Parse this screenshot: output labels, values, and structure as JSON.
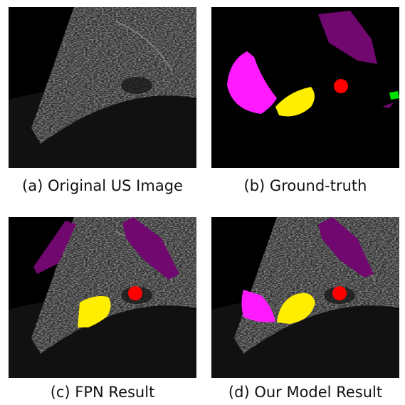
{
  "panels": [
    {
      "caption": "(a) Original US Image"
    },
    {
      "caption": "(b) Ground-truth"
    },
    {
      "caption": "(c) FPN Result"
    },
    {
      "caption": "(d) Our Model Result"
    }
  ]
}
